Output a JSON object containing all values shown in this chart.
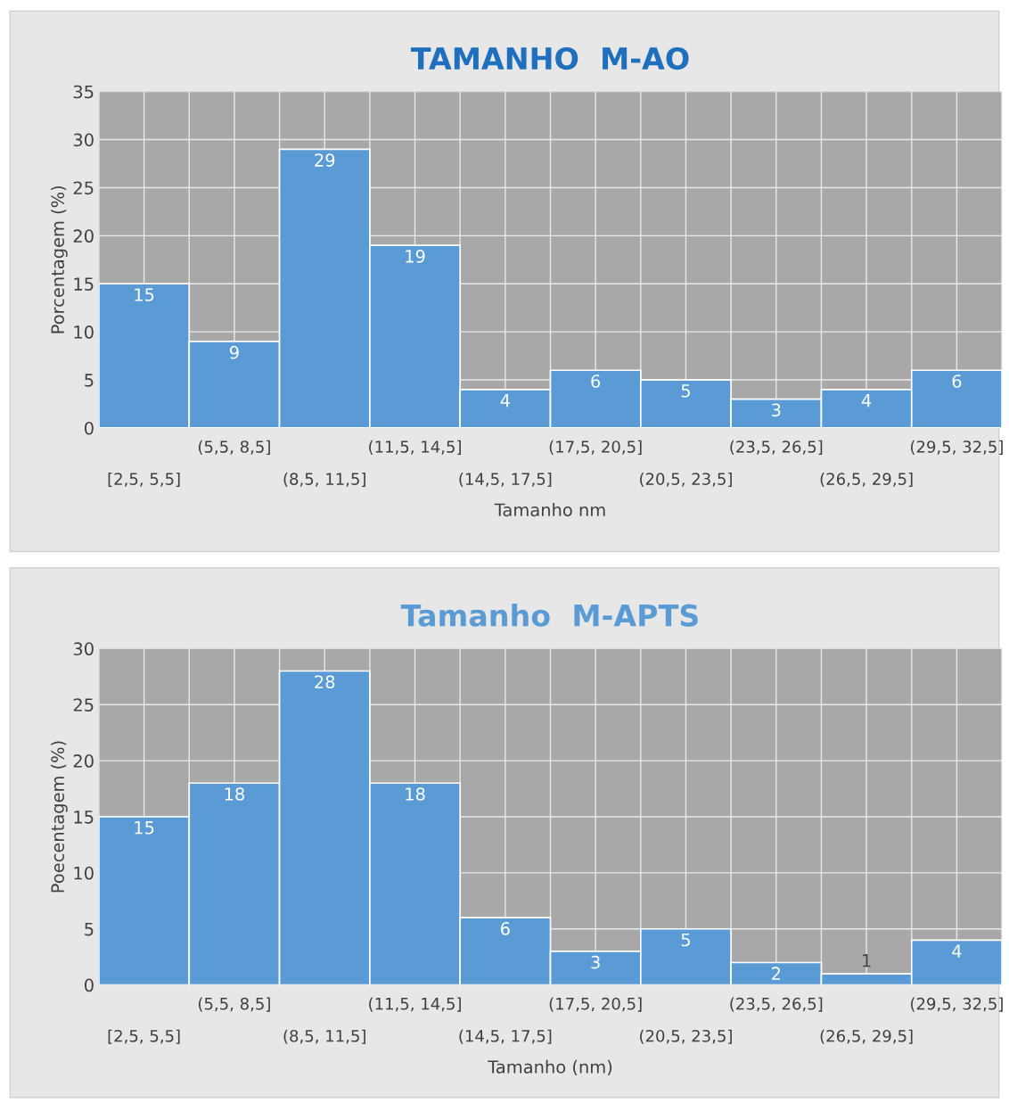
{
  "chart_data": [
    {
      "type": "bar",
      "title": "TAMANHO  M-AO",
      "xlabel": "Tamanho nm",
      "ylabel": "Porcentagem (%)",
      "categories": [
        "[2,5, 5,5]",
        "(5,5, 8,5]",
        "(8,5, 11,5]",
        "(11,5, 14,5]",
        "(14,5, 17,5]",
        "(17,5, 20,5]",
        "(20,5, 23,5]",
        "(23,5, 26,5]",
        "(26,5, 29,5]",
        "(29,5, 32,5]"
      ],
      "values": [
        15,
        9,
        29,
        19,
        4,
        6,
        5,
        3,
        4,
        6
      ],
      "color": "#5b9bd5",
      "ylim": [
        0,
        35
      ],
      "yticks": [
        0,
        5,
        10,
        15,
        20,
        25,
        30,
        35
      ],
      "grid": true,
      "data_labels": true
    },
    {
      "type": "bar",
      "title": "Tamanho  M-APTS",
      "xlabel": "Tamanho (nm)",
      "ylabel": "Poecentagem (%)",
      "categories": [
        "[2,5, 5,5]",
        "(5,5, 8,5]",
        "(8,5, 11,5]",
        "(11,5, 14,5]",
        "(14,5, 17,5]",
        "(17,5, 20,5]",
        "(20,5, 23,5]",
        "(23,5, 26,5]",
        "(26,5, 29,5]",
        "(29,5, 32,5]"
      ],
      "values": [
        15,
        18,
        28,
        18,
        6,
        3,
        5,
        2,
        1,
        4
      ],
      "color": "#5b9bd5",
      "ylim": [
        0,
        30
      ],
      "yticks": [
        0,
        5,
        10,
        15,
        20,
        25,
        30
      ],
      "grid": true,
      "data_labels": true
    }
  ]
}
